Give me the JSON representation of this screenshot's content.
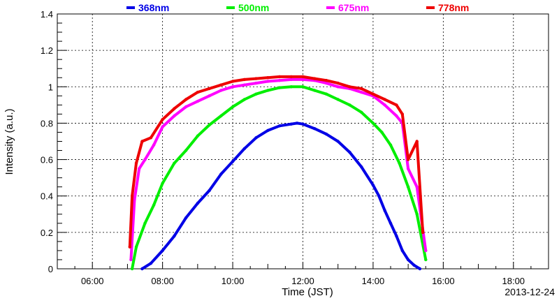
{
  "chart_data": {
    "type": "line",
    "date_label": "2013-12-24",
    "xlabel": "Time (JST)",
    "ylabel": "Intensity (a.u.)",
    "xlim": [
      "05:00",
      "19:00"
    ],
    "ylim": [
      0,
      1.4
    ],
    "xticks": [
      "06:00",
      "08:00",
      "10:00",
      "12:00",
      "14:00",
      "16:00",
      "18:00"
    ],
    "yticks": [
      "0",
      "0.2",
      "0.4",
      "0.6",
      "0.8",
      "1",
      "1.2",
      "1.4"
    ],
    "grid": true,
    "legend_position": "top",
    "series": [
      {
        "name": "368nm",
        "color": "#0000e6",
        "x": [
          "07:25",
          "07:40",
          "08:00",
          "08:20",
          "08:40",
          "09:00",
          "09:20",
          "09:40",
          "10:00",
          "10:20",
          "10:40",
          "11:00",
          "11:20",
          "11:40",
          "11:50",
          "12:00",
          "12:20",
          "12:40",
          "13:00",
          "13:20",
          "13:40",
          "14:00",
          "14:10",
          "14:20",
          "14:30",
          "14:40",
          "14:50",
          "15:00",
          "15:10",
          "15:20"
        ],
        "y": [
          0.0,
          0.03,
          0.1,
          0.18,
          0.28,
          0.36,
          0.43,
          0.52,
          0.59,
          0.66,
          0.72,
          0.76,
          0.785,
          0.795,
          0.8,
          0.795,
          0.77,
          0.74,
          0.7,
          0.64,
          0.56,
          0.46,
          0.4,
          0.32,
          0.25,
          0.18,
          0.1,
          0.05,
          0.02,
          0.0
        ]
      },
      {
        "name": "500nm",
        "color": "#00ee00",
        "x": [
          "07:08",
          "07:15",
          "07:30",
          "07:45",
          "08:00",
          "08:20",
          "08:40",
          "09:00",
          "09:20",
          "09:40",
          "10:00",
          "10:20",
          "10:40",
          "11:00",
          "11:20",
          "11:40",
          "12:00",
          "12:20",
          "12:40",
          "13:00",
          "13:20",
          "13:40",
          "14:00",
          "14:15",
          "14:30",
          "14:45",
          "15:00",
          "15:15",
          "15:30"
        ],
        "y": [
          0.0,
          0.12,
          0.25,
          0.35,
          0.47,
          0.58,
          0.65,
          0.73,
          0.79,
          0.84,
          0.89,
          0.93,
          0.96,
          0.98,
          0.995,
          1.0,
          1.0,
          0.98,
          0.96,
          0.93,
          0.9,
          0.86,
          0.8,
          0.75,
          0.68,
          0.58,
          0.45,
          0.3,
          0.05
        ]
      },
      {
        "name": "675nm",
        "color": "#ff00ff",
        "x": [
          "07:06",
          "07:12",
          "07:20",
          "07:30",
          "07:45",
          "08:00",
          "08:20",
          "08:40",
          "09:00",
          "09:20",
          "09:40",
          "10:00",
          "10:20",
          "10:40",
          "11:00",
          "11:20",
          "11:40",
          "12:00",
          "12:20",
          "12:40",
          "13:00",
          "13:20",
          "13:40",
          "14:00",
          "14:20",
          "14:40",
          "14:50",
          "15:00",
          "15:15",
          "15:30"
        ],
        "y": [
          0.05,
          0.38,
          0.55,
          0.6,
          0.68,
          0.78,
          0.84,
          0.89,
          0.92,
          0.95,
          0.98,
          1.0,
          1.01,
          1.02,
          1.03,
          1.035,
          1.04,
          1.04,
          1.035,
          1.02,
          1.0,
          0.99,
          0.97,
          0.95,
          0.9,
          0.84,
          0.8,
          0.55,
          0.45,
          0.1
        ]
      },
      {
        "name": "778nm",
        "color": "#ee0000",
        "x": [
          "07:04",
          "07:08",
          "07:15",
          "07:25",
          "07:40",
          "08:00",
          "08:20",
          "08:40",
          "09:00",
          "09:20",
          "09:40",
          "10:00",
          "10:20",
          "10:40",
          "11:00",
          "11:20",
          "11:40",
          "12:00",
          "12:20",
          "12:40",
          "13:00",
          "13:20",
          "13:40",
          "14:00",
          "14:20",
          "14:40",
          "14:50",
          "15:00",
          "15:15",
          "15:25"
        ],
        "y": [
          0.12,
          0.4,
          0.58,
          0.7,
          0.72,
          0.82,
          0.88,
          0.93,
          0.97,
          0.99,
          1.01,
          1.03,
          1.04,
          1.045,
          1.05,
          1.055,
          1.055,
          1.055,
          1.045,
          1.035,
          1.02,
          1.0,
          0.99,
          0.96,
          0.93,
          0.9,
          0.85,
          0.6,
          0.7,
          0.2
        ]
      }
    ]
  }
}
